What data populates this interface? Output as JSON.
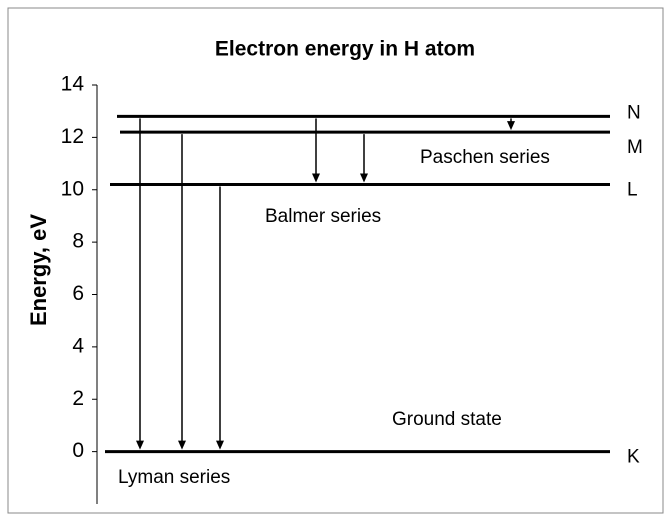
{
  "chart_data": {
    "type": "energy-level",
    "title": "Electron energy in H atom",
    "y_label": "Energy, eV",
    "ylim": [
      -2,
      14
    ],
    "yticks": [
      0,
      2,
      4,
      6,
      8,
      10,
      12,
      14
    ],
    "levels": [
      {
        "name": "N",
        "energy": 12.8
      },
      {
        "name": "M",
        "energy": 12.2
      },
      {
        "name": "L",
        "energy": 10.2
      },
      {
        "name": "K",
        "energy": 0
      }
    ],
    "series": [
      {
        "name": "Lyman series",
        "transitions": [
          {
            "from": "N",
            "to": "K"
          },
          {
            "from": "M",
            "to": "K"
          },
          {
            "from": "L",
            "to": "K"
          }
        ]
      },
      {
        "name": "Balmer series",
        "transitions": [
          {
            "from": "N",
            "to": "L"
          },
          {
            "from": "M",
            "to": "L"
          }
        ]
      },
      {
        "name": "Paschen series",
        "transitions": [
          {
            "from": "N",
            "to": "M"
          }
        ]
      }
    ],
    "annotations": [
      "Ground state"
    ]
  }
}
